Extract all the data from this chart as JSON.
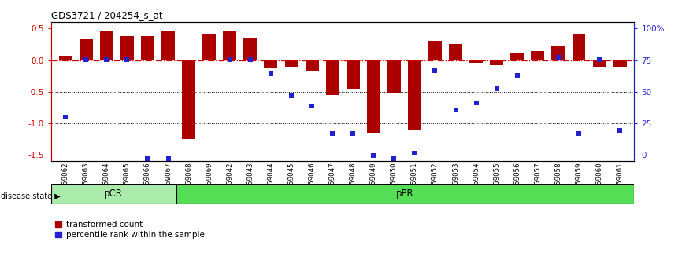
{
  "title": "GDS3721 / 204254_s_at",
  "samples": [
    "GSM559062",
    "GSM559063",
    "GSM559064",
    "GSM559065",
    "GSM559066",
    "GSM559067",
    "GSM559068",
    "GSM559069",
    "GSM559042",
    "GSM559043",
    "GSM559044",
    "GSM559045",
    "GSM559046",
    "GSM559047",
    "GSM559048",
    "GSM559049",
    "GSM559050",
    "GSM559051",
    "GSM559052",
    "GSM559053",
    "GSM559054",
    "GSM559055",
    "GSM559056",
    "GSM559057",
    "GSM559058",
    "GSM559059",
    "GSM559060",
    "GSM559061"
  ],
  "bar_values": [
    0.07,
    0.33,
    0.45,
    0.38,
    0.38,
    0.45,
    -1.25,
    0.42,
    0.45,
    0.35,
    -0.13,
    -0.1,
    -0.18,
    -0.55,
    -0.45,
    -1.15,
    -0.52,
    -1.1,
    0.3,
    0.25,
    -0.04,
    -0.08,
    0.12,
    0.15,
    0.22,
    0.42,
    -0.1,
    -0.1
  ],
  "percentile_values": [
    0.32,
    0.73,
    0.73,
    0.73,
    0.02,
    0.02,
    null,
    null,
    0.73,
    0.73,
    0.63,
    0.47,
    0.4,
    0.2,
    0.2,
    0.04,
    0.02,
    0.06,
    0.65,
    0.37,
    0.42,
    0.52,
    0.62,
    null,
    0.75,
    0.2,
    0.73,
    0.22
  ],
  "pCR_count": 6,
  "bar_color": "#AA0000",
  "dot_color": "#2222CC",
  "dashed_color": "#CC0000",
  "ylim": [
    -1.6,
    0.6
  ],
  "yticks_left": [
    0.5,
    0.0,
    -0.5,
    -1.0,
    -1.5
  ],
  "yticks_right_labels": [
    "100%",
    "75",
    "50",
    "25",
    "0"
  ],
  "yticks_right_vals": [
    0.5,
    0.0,
    -0.5,
    -1.0,
    -1.5
  ],
  "pCR_color": "#AAEAAA",
  "pPR_color": "#55DD55",
  "bg_color": "#FFFFFF"
}
